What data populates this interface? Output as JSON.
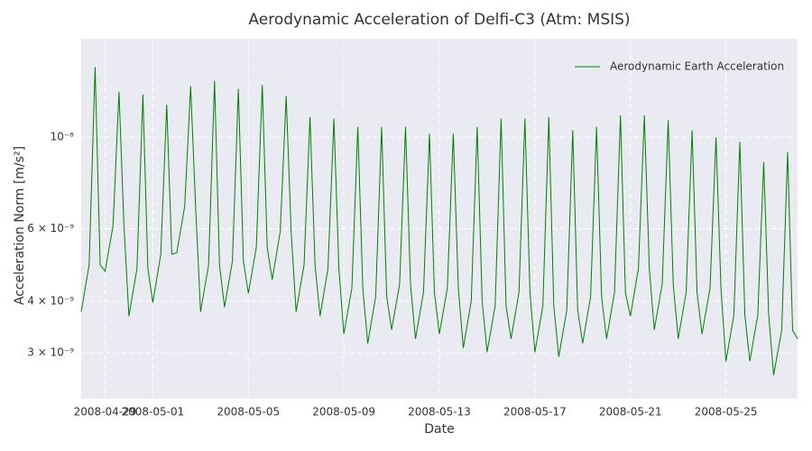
{
  "chart_data": {
    "type": "line",
    "title": "Aerodynamic Acceleration of Delfi-C3 (Atm: MSIS)",
    "xlabel": "Date",
    "ylabel": "Acceleration Norm [m/s²]",
    "log_y": true,
    "grid": true,
    "legend": "upper right",
    "xlim": [
      "2008-04-28",
      "2008-05-28"
    ],
    "xticks": [
      "2008-04-29",
      "2008-05-01",
      "2008-05-05",
      "2008-05-09",
      "2008-05-13",
      "2008-05-17",
      "2008-05-21",
      "2008-05-25"
    ],
    "ylim": [
      2.32e-09,
      1.734e-08
    ],
    "yticks": [
      {
        "value": 3e-09,
        "label": "3 × 10⁻⁹"
      },
      {
        "value": 4e-09,
        "label": "4 × 10⁻⁹"
      },
      {
        "value": 6e-09,
        "label": "6 × 10⁻⁹"
      },
      {
        "value": 1e-08,
        "label": "10⁻⁸"
      }
    ],
    "x": [
      "2008-04-28 00:00",
      "2008-04-28 08:00",
      "2008-04-28 14:00",
      "2008-04-28 19:00",
      "2008-04-29 00:00",
      "2008-04-29 08:00",
      "2008-04-29 14:00",
      "2008-04-29 19:00",
      "2008-04-30 00:00",
      "2008-04-30 08:00",
      "2008-04-30 14:00",
      "2008-04-30 19:00",
      "2008-05-01 00:00",
      "2008-05-01 08:00",
      "2008-05-01 14:00",
      "2008-05-01 19:00",
      "2008-05-02 00:00",
      "2008-05-02 08:00",
      "2008-05-02 14:00",
      "2008-05-02 19:00",
      "2008-05-03 00:00",
      "2008-05-03 08:00",
      "2008-05-03 14:00",
      "2008-05-03 19:00",
      "2008-05-04 00:00",
      "2008-05-04 08:00",
      "2008-05-04 14:00",
      "2008-05-04 19:00",
      "2008-05-05 00:00",
      "2008-05-05 08:00",
      "2008-05-05 14:00",
      "2008-05-05 19:00",
      "2008-05-06 00:00",
      "2008-05-06 08:00",
      "2008-05-06 14:00",
      "2008-05-06 19:00",
      "2008-05-07 00:00",
      "2008-05-07 08:00",
      "2008-05-07 14:00",
      "2008-05-07 19:00",
      "2008-05-08 00:00",
      "2008-05-08 08:00",
      "2008-05-08 14:00",
      "2008-05-08 19:00",
      "2008-05-09 00:00",
      "2008-05-09 08:00",
      "2008-05-09 14:00",
      "2008-05-09 19:00",
      "2008-05-10 00:00",
      "2008-05-10 08:00",
      "2008-05-10 14:00",
      "2008-05-10 19:00",
      "2008-05-11 00:00",
      "2008-05-11 08:00",
      "2008-05-11 14:00",
      "2008-05-11 19:00",
      "2008-05-12 00:00",
      "2008-05-12 08:00",
      "2008-05-12 14:00",
      "2008-05-12 19:00",
      "2008-05-13 00:00",
      "2008-05-13 08:00",
      "2008-05-13 14:00",
      "2008-05-13 19:00",
      "2008-05-14 00:00",
      "2008-05-14 08:00",
      "2008-05-14 14:00",
      "2008-05-14 19:00",
      "2008-05-15 00:00",
      "2008-05-15 08:00",
      "2008-05-15 14:00",
      "2008-05-15 19:00",
      "2008-05-16 00:00",
      "2008-05-16 08:00",
      "2008-05-16 14:00",
      "2008-05-16 19:00",
      "2008-05-17 00:00",
      "2008-05-17 08:00",
      "2008-05-17 14:00",
      "2008-05-17 19:00",
      "2008-05-18 00:00",
      "2008-05-18 08:00",
      "2008-05-18 14:00",
      "2008-05-18 19:00",
      "2008-05-19 00:00",
      "2008-05-19 08:00",
      "2008-05-19 14:00",
      "2008-05-19 19:00",
      "2008-05-20 00:00",
      "2008-05-20 08:00",
      "2008-05-20 14:00",
      "2008-05-20 19:00",
      "2008-05-21 00:00",
      "2008-05-21 08:00",
      "2008-05-21 14:00",
      "2008-05-21 19:00",
      "2008-05-22 00:00",
      "2008-05-22 08:00",
      "2008-05-22 14:00",
      "2008-05-22 19:00",
      "2008-05-23 00:00",
      "2008-05-23 08:00",
      "2008-05-23 14:00",
      "2008-05-23 19:00",
      "2008-05-24 00:00",
      "2008-05-24 08:00",
      "2008-05-24 14:00",
      "2008-05-24 19:00",
      "2008-05-25 00:00",
      "2008-05-25 08:00",
      "2008-05-25 14:00",
      "2008-05-25 19:00",
      "2008-05-26 00:00",
      "2008-05-26 08:00",
      "2008-05-26 14:00",
      "2008-05-26 19:00",
      "2008-05-27 00:00",
      "2008-05-27 08:00",
      "2008-05-27 14:00",
      "2008-05-27 19:00",
      "2008-05-28 00:00"
    ],
    "series": [
      {
        "name": "Aerodynamic Earth Acceleration",
        "color": "#008000",
        "values": [
          3.77e-09,
          4.9e-09,
          1.48e-08,
          4.9e-09,
          4.73e-09,
          6.1e-09,
          1.29e-08,
          6.1e-09,
          3.68e-09,
          4.8e-09,
          1.27e-08,
          4.8e-09,
          3.97e-09,
          5.2e-09,
          1.2e-08,
          5.2e-09,
          5.24e-09,
          6.8e-09,
          1.33e-08,
          6.8e-09,
          3.77e-09,
          4.9e-09,
          1.37e-08,
          4.9e-09,
          3.87e-09,
          5e-09,
          1.31e-08,
          5e-09,
          4.18e-09,
          5.4e-09,
          1.34e-08,
          5.4e-09,
          4.51e-09,
          5.9e-09,
          1.26e-08,
          5.9e-09,
          3.77e-09,
          4.9e-09,
          1.12e-08,
          4.9e-09,
          3.68e-09,
          4.8e-09,
          1.11e-08,
          4.8e-09,
          3.33e-09,
          4.3e-09,
          1.06e-08,
          4.3e-09,
          3.16e-09,
          4.1e-09,
          1.06e-08,
          4.1e-09,
          3.41e-09,
          4.4e-09,
          1.06e-08,
          4.4e-09,
          3.24e-09,
          4.2e-09,
          1.02e-08,
          4.2e-09,
          3.33e-09,
          4.3e-09,
          1.02e-08,
          4.3e-09,
          3.08e-09,
          4e-09,
          1.06e-08,
          4e-09,
          3.01e-09,
          3.9e-09,
          1.11e-08,
          3.9e-09,
          3.24e-09,
          4.2e-09,
          1.11e-08,
          4.2e-09,
          3.01e-09,
          3.9e-09,
          1.12e-08,
          3.9e-09,
          2.93e-09,
          3.8e-09,
          1.04e-08,
          3.8e-09,
          3.16e-09,
          4.1e-09,
          1.06e-08,
          4.1e-09,
          3.24e-09,
          4.2e-09,
          1.13e-08,
          4.2e-09,
          3.68e-09,
          4.8e-09,
          1.13e-08,
          4.8e-09,
          3.41e-09,
          4.4e-09,
          1.1e-08,
          4.4e-09,
          3.24e-09,
          4.2e-09,
          1.04e-08,
          4.2e-09,
          3.33e-09,
          4.3e-09,
          1e-08,
          4.3e-09,
          2.86e-09,
          3.7e-09,
          9.75e-09,
          3.7e-09,
          2.86e-09,
          3.7e-09,
          8.7e-09,
          3.7e-09,
          2.65e-09,
          3.4e-09,
          9.2e-09,
          3.4e-09,
          3.24e-09
        ]
      }
    ]
  }
}
